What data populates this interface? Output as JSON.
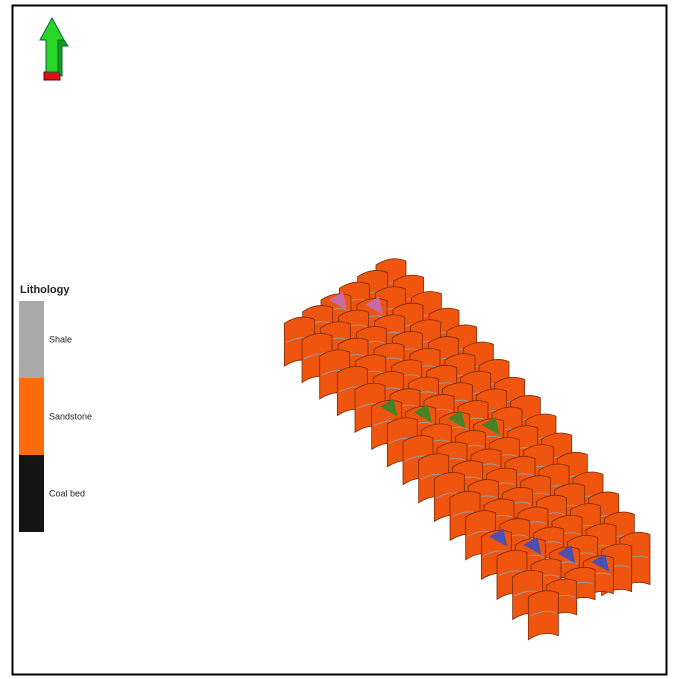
{
  "legend": {
    "title": "Lithology",
    "items": [
      {
        "label": "Shale",
        "color": "#a9a9a9"
      },
      {
        "label": "Sandstone",
        "color": "#ff6a0a"
      },
      {
        "label": "Coal bed",
        "color": "#141414"
      }
    ]
  }
}
